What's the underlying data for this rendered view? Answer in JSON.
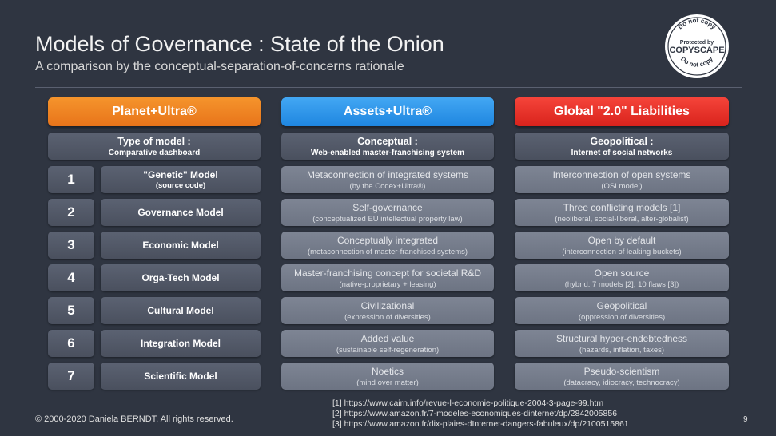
{
  "title": "Models of Governance : State of the Onion",
  "subtitle": "A comparison by the conceptual-separation-of-concerns rationale",
  "seal": {
    "top": "Do not copy",
    "middle1": "Protected by",
    "middle2": "COPYSCAPE",
    "bottom": "Do not copy"
  },
  "columns": [
    {
      "header": "Planet+Ultra®",
      "type_l1": "Type of model :",
      "type_l2": "Comparative dashboard",
      "color": "#f08a28"
    },
    {
      "header": "Assets+Ultra®",
      "type_l1": "Conceptual :",
      "type_l2": "Web-enabled master-franchising system",
      "color": "#2f95ea"
    },
    {
      "header": "Global \"2.0\" Liabilities",
      "type_l1": "Geopolitical :",
      "type_l2": "Internet of social networks",
      "color": "#ea3329"
    }
  ],
  "rows": [
    {
      "num": "1",
      "model": "\"Genetic\" Model",
      "model_sub": "(source code)",
      "a_l1": "Metaconnection of integrated systems",
      "a_l2": "(by the Codex+Ultra®)",
      "b_l1": "Interconnection of open systems",
      "b_l2": "(OSI model)"
    },
    {
      "num": "2",
      "model": "Governance Model",
      "model_sub": "",
      "a_l1": "Self-governance",
      "a_l2": "(conceptualized EU intellectual property law)",
      "b_l1": "Three conflicting models [1]",
      "b_l2": "(neoliberal, social-liberal, alter-globalist)"
    },
    {
      "num": "3",
      "model": "Economic Model",
      "model_sub": "",
      "a_l1": "Conceptually integrated",
      "a_l2": "(metaconnection of master-franchised systems)",
      "b_l1": "Open by default",
      "b_l2": "(interconnection of leaking buckets)"
    },
    {
      "num": "4",
      "model": "Orga-Tech Model",
      "model_sub": "",
      "a_l1": "Master-franchising concept for societal R&D",
      "a_l2": "(native-proprietary + leasing)",
      "b_l1": "Open source",
      "b_l2": "(hybrid: 7 models [2], 10 flaws [3])"
    },
    {
      "num": "5",
      "model": "Cultural Model",
      "model_sub": "",
      "a_l1": "Civilizational",
      "a_l2": "(expression of diversities)",
      "b_l1": "Geopolitical",
      "b_l2": "(oppression of diversities)"
    },
    {
      "num": "6",
      "model": "Integration Model",
      "model_sub": "",
      "a_l1": "Added value",
      "a_l2": "(sustainable self-regeneration)",
      "b_l1": "Structural hyper-endebtedness",
      "b_l2": "(hazards, inflation, taxes)"
    },
    {
      "num": "7",
      "model": "Scientific Model",
      "model_sub": "",
      "a_l1": "Noetics",
      "a_l2": "(mind over matter)",
      "b_l1": "Pseudo-scientism",
      "b_l2": "(datacracy, idiocracy, technocracy)"
    }
  ],
  "references": [
    "[1] https://www.cairn.info/revue-l-economie-politique-2004-3-page-99.htm",
    "[2] https://www.amazon.fr/7-modeles-economiques-dinternet/dp/2842005856",
    "[3] https://www.amazon.fr/dix-plaies-dInternet-dangers-fabuleux/dp/2100515861"
  ],
  "copyright": "© 2000-2020 Daniela BERNDT. All rights reserved.",
  "page_number": "9"
}
